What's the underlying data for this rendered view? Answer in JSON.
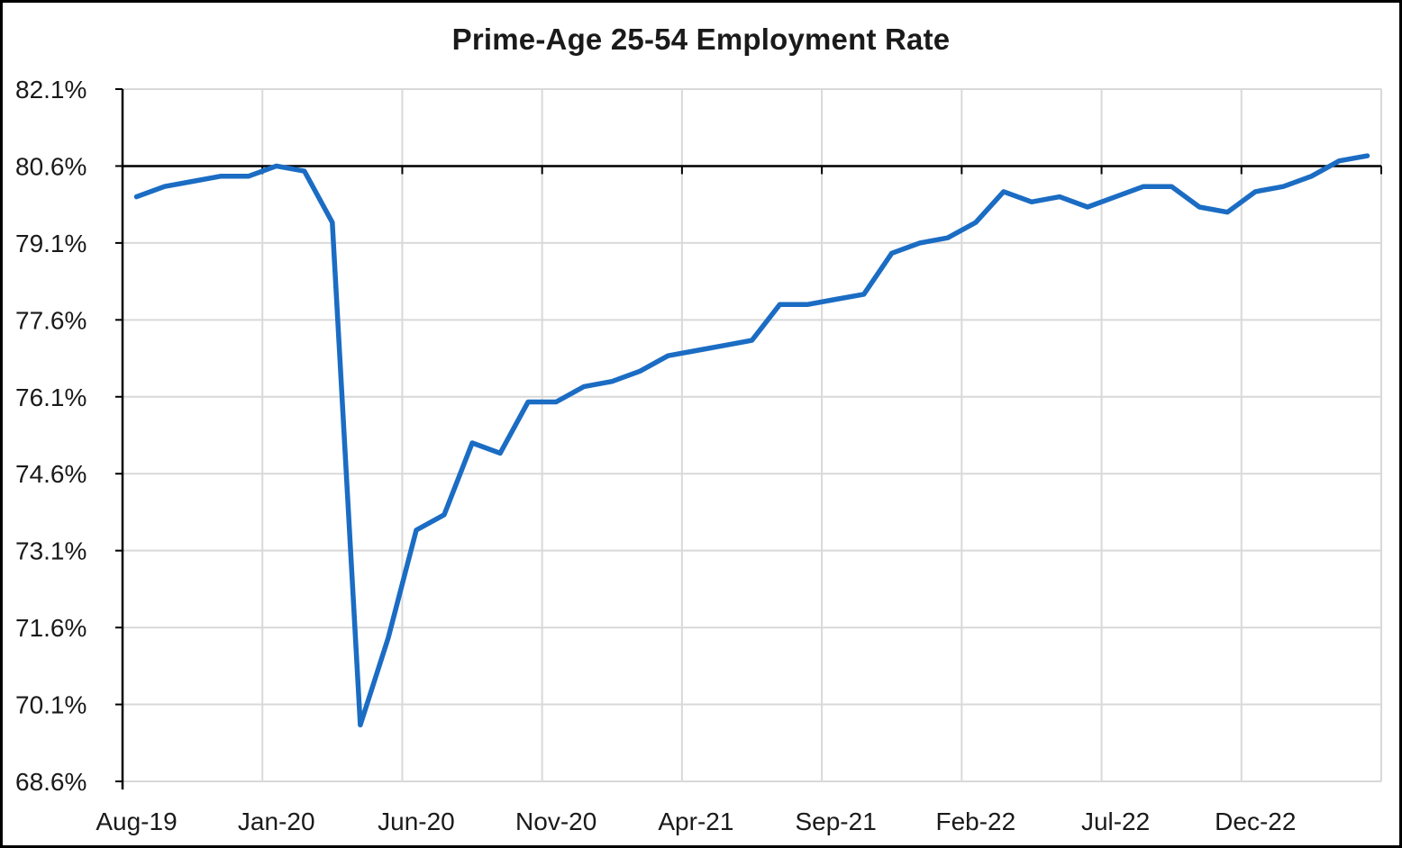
{
  "chart_data": {
    "type": "line",
    "title": "Prime-Age 25-54 Employment Rate",
    "series_name": "Prime-age 25-54 employment rate",
    "x": [
      "Aug-19",
      "Sep-19",
      "Oct-19",
      "Nov-19",
      "Dec-19",
      "Jan-20",
      "Feb-20",
      "Mar-20",
      "Apr-20",
      "May-20",
      "Jun-20",
      "Jul-20",
      "Aug-20",
      "Sep-20",
      "Oct-20",
      "Nov-20",
      "Dec-20",
      "Jan-21",
      "Feb-21",
      "Mar-21",
      "Apr-21",
      "May-21",
      "Jun-21",
      "Jul-21",
      "Aug-21",
      "Sep-21",
      "Oct-21",
      "Nov-21",
      "Dec-21",
      "Jan-22",
      "Feb-22",
      "Mar-22",
      "Apr-22",
      "May-22",
      "Jun-22",
      "Jul-22",
      "Aug-22",
      "Sep-22",
      "Oct-22",
      "Nov-22",
      "Dec-22",
      "Jan-23",
      "Feb-23",
      "Mar-23",
      "Apr-23"
    ],
    "values": [
      80.0,
      80.2,
      80.3,
      80.4,
      80.4,
      80.6,
      80.5,
      79.5,
      69.7,
      71.4,
      73.5,
      73.8,
      75.2,
      75.0,
      76.0,
      76.0,
      76.3,
      76.4,
      76.6,
      76.9,
      77.0,
      77.1,
      77.2,
      77.9,
      77.9,
      78.0,
      78.1,
      78.9,
      79.1,
      79.2,
      79.5,
      80.1,
      79.9,
      80.0,
      79.8,
      80.0,
      80.2,
      80.2,
      79.8,
      79.7,
      80.1,
      80.2,
      80.4,
      80.7,
      80.8
    ],
    "x_tick_labels": [
      "Aug-19",
      "Jan-20",
      "Jun-20",
      "Nov-20",
      "Apr-21",
      "Sep-21",
      "Feb-22",
      "Jul-22",
      "Dec-22"
    ],
    "x_tick_indices": [
      0,
      5,
      10,
      15,
      20,
      25,
      30,
      35,
      40
    ],
    "y_tick_labels": [
      "82.1%",
      "80.6%",
      "79.1%",
      "77.6%",
      "76.1%",
      "74.6%",
      "73.1%",
      "71.6%",
      "70.1%",
      "68.6%"
    ],
    "y_ticks": [
      82.1,
      80.6,
      79.1,
      77.6,
      76.1,
      74.6,
      73.1,
      71.6,
      70.1,
      68.6
    ],
    "ylim": [
      68.6,
      82.1
    ],
    "axis_cross_y": 80.6,
    "grid": "both",
    "legend": "none",
    "colors": {
      "line": "#1B6CC3",
      "grid": "#D9D9D9",
      "axis": "#000000",
      "text": "#1A1A1A",
      "background": "#FFFFFF",
      "border": "#000000"
    }
  }
}
